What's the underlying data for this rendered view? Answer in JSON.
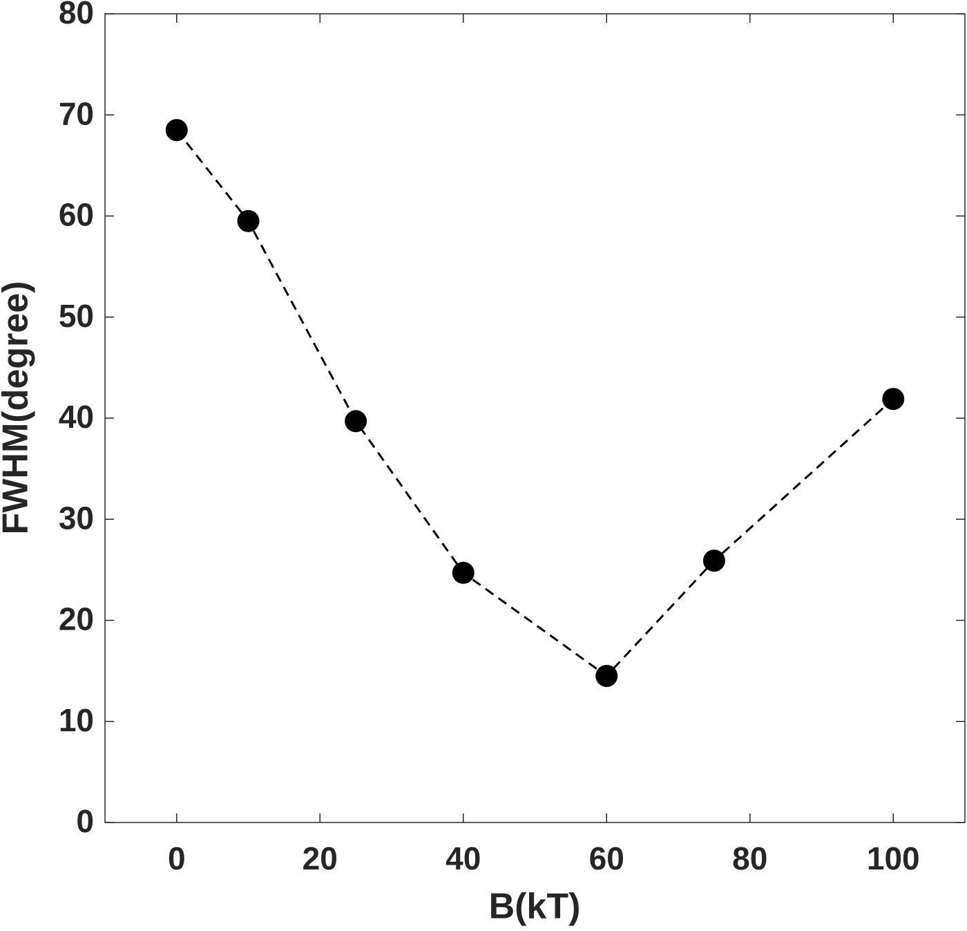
{
  "chart_data": {
    "type": "line",
    "x_label": "B(kT)",
    "y_label": "FWHM(degree)",
    "x": [
      0,
      10,
      25,
      40,
      60,
      75,
      100
    ],
    "values": [
      68.5,
      59.5,
      39.7,
      24.7,
      14.5,
      25.9,
      41.9
    ],
    "color": "#000000",
    "line_style": "dashed",
    "marker": "circle",
    "xlim": [
      -10,
      110
    ],
    "xticks": [
      0,
      20,
      40,
      60,
      80,
      100
    ],
    "ylim": [
      0,
      80
    ],
    "yticks": [
      0,
      10,
      20,
      30,
      40,
      50,
      60,
      70,
      80
    ],
    "box": true
  }
}
